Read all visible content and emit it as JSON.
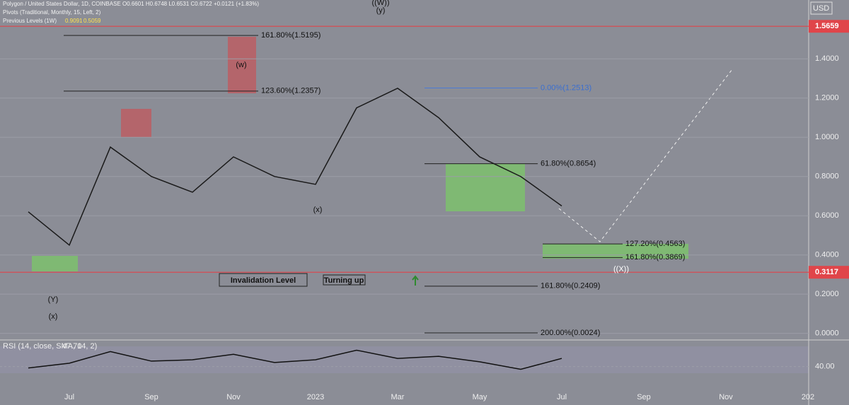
{
  "header": {
    "symbol": "Polygon / United States Dollar, 1D, COINBASE  O0.6601 H0.6748 L0.6531 C0.6722 +0.0121 (+1.83%)",
    "pivots": "Pivots (Traditional, Monthly, 15, Left, 2)",
    "previous_levels": "Previous Levels (1W)",
    "previous_values": [
      "0.9091",
      "0.5059"
    ]
  },
  "chart_data": [
    {
      "type": "line",
      "currency": "USD",
      "categories": [
        null,
        "Jul",
        null,
        "Sep",
        null,
        "Nov",
        null,
        "2023",
        null,
        "Mar",
        null,
        "May",
        null,
        "Jul",
        null,
        "Sep",
        null,
        "Nov",
        null,
        "202"
      ],
      "values": [
        0.62,
        0.45,
        0.95,
        0.8,
        0.72,
        0.9,
        0.8,
        0.76,
        1.15,
        1.25,
        1.1,
        0.9,
        0.8,
        0.65,
        null,
        null,
        null,
        null,
        null,
        null
      ],
      "color": "#1a1a1a",
      "ylim": [
        -0.03,
        1.7
      ],
      "yticks": [
        {
          "value": 0,
          "label": "0.0000"
        },
        {
          "value": 0.2,
          "label": "0.2000"
        },
        {
          "value": 0.4,
          "label": "0.4000"
        },
        {
          "value": 0.6,
          "label": "0.6000"
        },
        {
          "value": 0.8,
          "label": "0.8000"
        },
        {
          "value": 1.0,
          "label": "1.0000"
        },
        {
          "value": 1.2,
          "label": "1.2000"
        },
        {
          "value": 1.4,
          "label": "1.4000"
        }
      ],
      "price_labels": [
        {
          "value": 1.5659,
          "label": "1.5659"
        },
        {
          "value": 0.3117,
          "label": "0.3117"
        }
      ],
      "fib_levels": [
        {
          "value": 1.5195,
          "label": "161.80%(1.5195)"
        },
        {
          "value": 1.2357,
          "label": "123.60%(1.2357)"
        },
        {
          "value": 1.2513,
          "label": "0.00%(1.2513)"
        },
        {
          "value": 0.8654,
          "label": "61.80%(0.8654)"
        },
        {
          "value": 0.4563,
          "label": "127.20%(0.4563)"
        },
        {
          "value": 0.3869,
          "label": "161.80%(0.3869)"
        },
        {
          "value": 0.2409,
          "label": "161.80%(0.2409)"
        },
        {
          "value": 0.0024,
          "label": "200.00%(0.0024)"
        }
      ],
      "wave_labels": [
        "((W))",
        "(y)",
        "(w)",
        "(x)",
        "(Y)",
        "(x)",
        "((X))"
      ],
      "annotations": [
        "Invalidation Level",
        "Turning up"
      ]
    },
    {
      "type": "line",
      "title": "RSI (14, close, SMA, 14, 2)",
      "last_value": "47.70",
      "categories": [
        null,
        "Jul",
        null,
        "Sep",
        null,
        "Nov",
        null,
        "2023",
        null,
        "Mar",
        null,
        "May",
        null,
        "Jul",
        null,
        "Sep",
        null,
        "Nov",
        null,
        "202"
      ],
      "values": [
        38,
        45,
        62,
        48,
        50,
        58,
        46,
        50,
        64,
        52,
        55,
        47,
        36,
        52,
        null,
        null,
        null,
        null,
        null,
        null
      ],
      "color": "#111111",
      "ylim": [
        20,
        80
      ],
      "yticks": [
        {
          "value": 40,
          "label": "40.00"
        }
      ]
    }
  ]
}
